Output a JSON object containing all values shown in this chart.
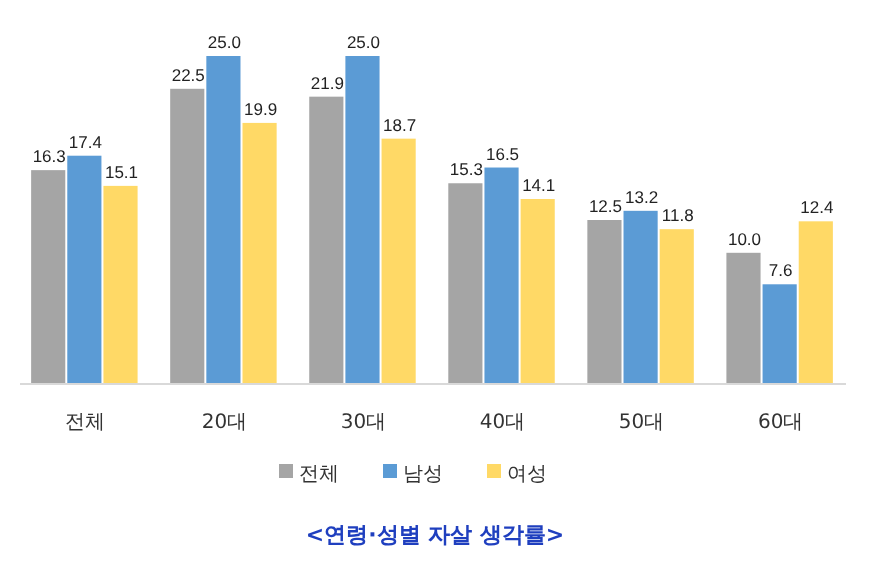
{
  "chart_data": {
    "type": "bar",
    "title": "<연령·성별 자살 생각률>",
    "categories": [
      "전체",
      "20대",
      "30대",
      "40대",
      "50대",
      "60대"
    ],
    "series": [
      {
        "name": "전체",
        "color": "#a5a5a5",
        "values": [
          16.3,
          22.5,
          21.9,
          15.3,
          12.5,
          10
        ],
        "value_labels": [
          "16.3",
          "22.5",
          "21.9",
          "15.3",
          "12.5",
          "10.0"
        ]
      },
      {
        "name": "남성",
        "color": "#5b9bd5",
        "values": [
          17.4,
          25,
          25,
          16.5,
          13.2,
          7.6
        ],
        "value_labels": [
          "17.4",
          "25.0",
          "25.0",
          "16.5",
          "13.2",
          "7.6"
        ]
      },
      {
        "name": "여성",
        "color": "#ffd966",
        "values": [
          15.1,
          19.9,
          18.7,
          14.1,
          11.8,
          12.4
        ],
        "value_labels": [
          "15.1",
          "19.9",
          "18.7",
          "14.1",
          "11.8",
          "12.4"
        ]
      }
    ],
    "legend": "bottom"
  }
}
